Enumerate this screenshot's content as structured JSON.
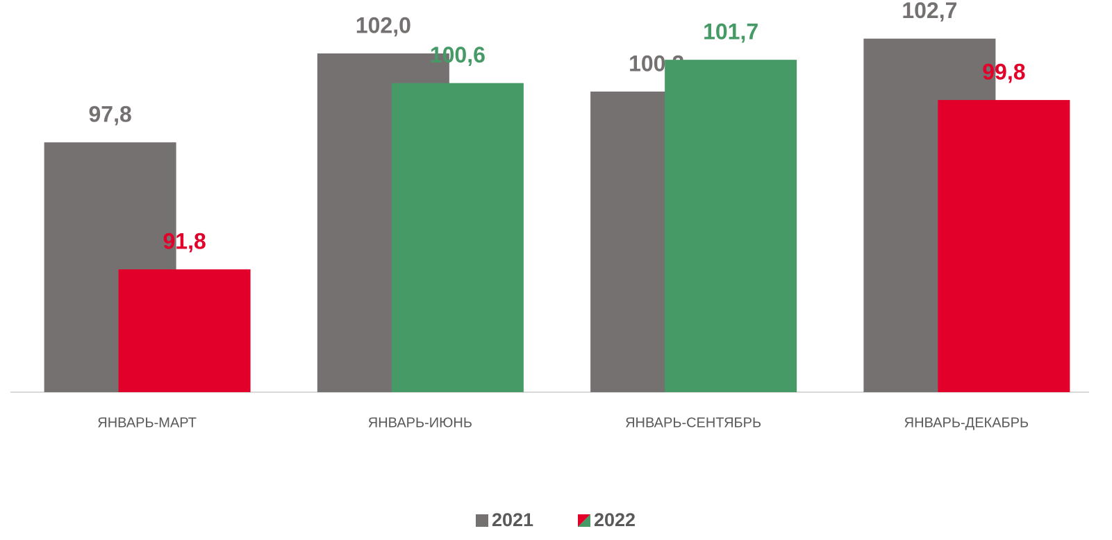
{
  "chart_data": {
    "type": "bar",
    "categories": [
      "ЯНВАРЬ-МАРТ",
      "ЯНВАРЬ-ИЮНЬ",
      "ЯНВАРЬ-СЕНТЯБРЬ",
      "ЯНВАРЬ-ДЕКАБРЬ"
    ],
    "series": [
      {
        "name": "2021",
        "color": "#767171",
        "values": [
          97.8,
          102.0,
          100.2,
          102.7
        ],
        "value_labels": [
          "97,8",
          "102,0",
          "100,2",
          "102,7"
        ]
      },
      {
        "name": "2022",
        "colors": [
          "#e2002b",
          "#459a66",
          "#459a66",
          "#e2002b"
        ],
        "values": [
          91.8,
          100.6,
          101.7,
          99.8
        ],
        "value_labels": [
          "91,8",
          "100,6",
          "101,7",
          "99,8"
        ]
      }
    ],
    "ylim": [
      86,
      104
    ]
  }
}
